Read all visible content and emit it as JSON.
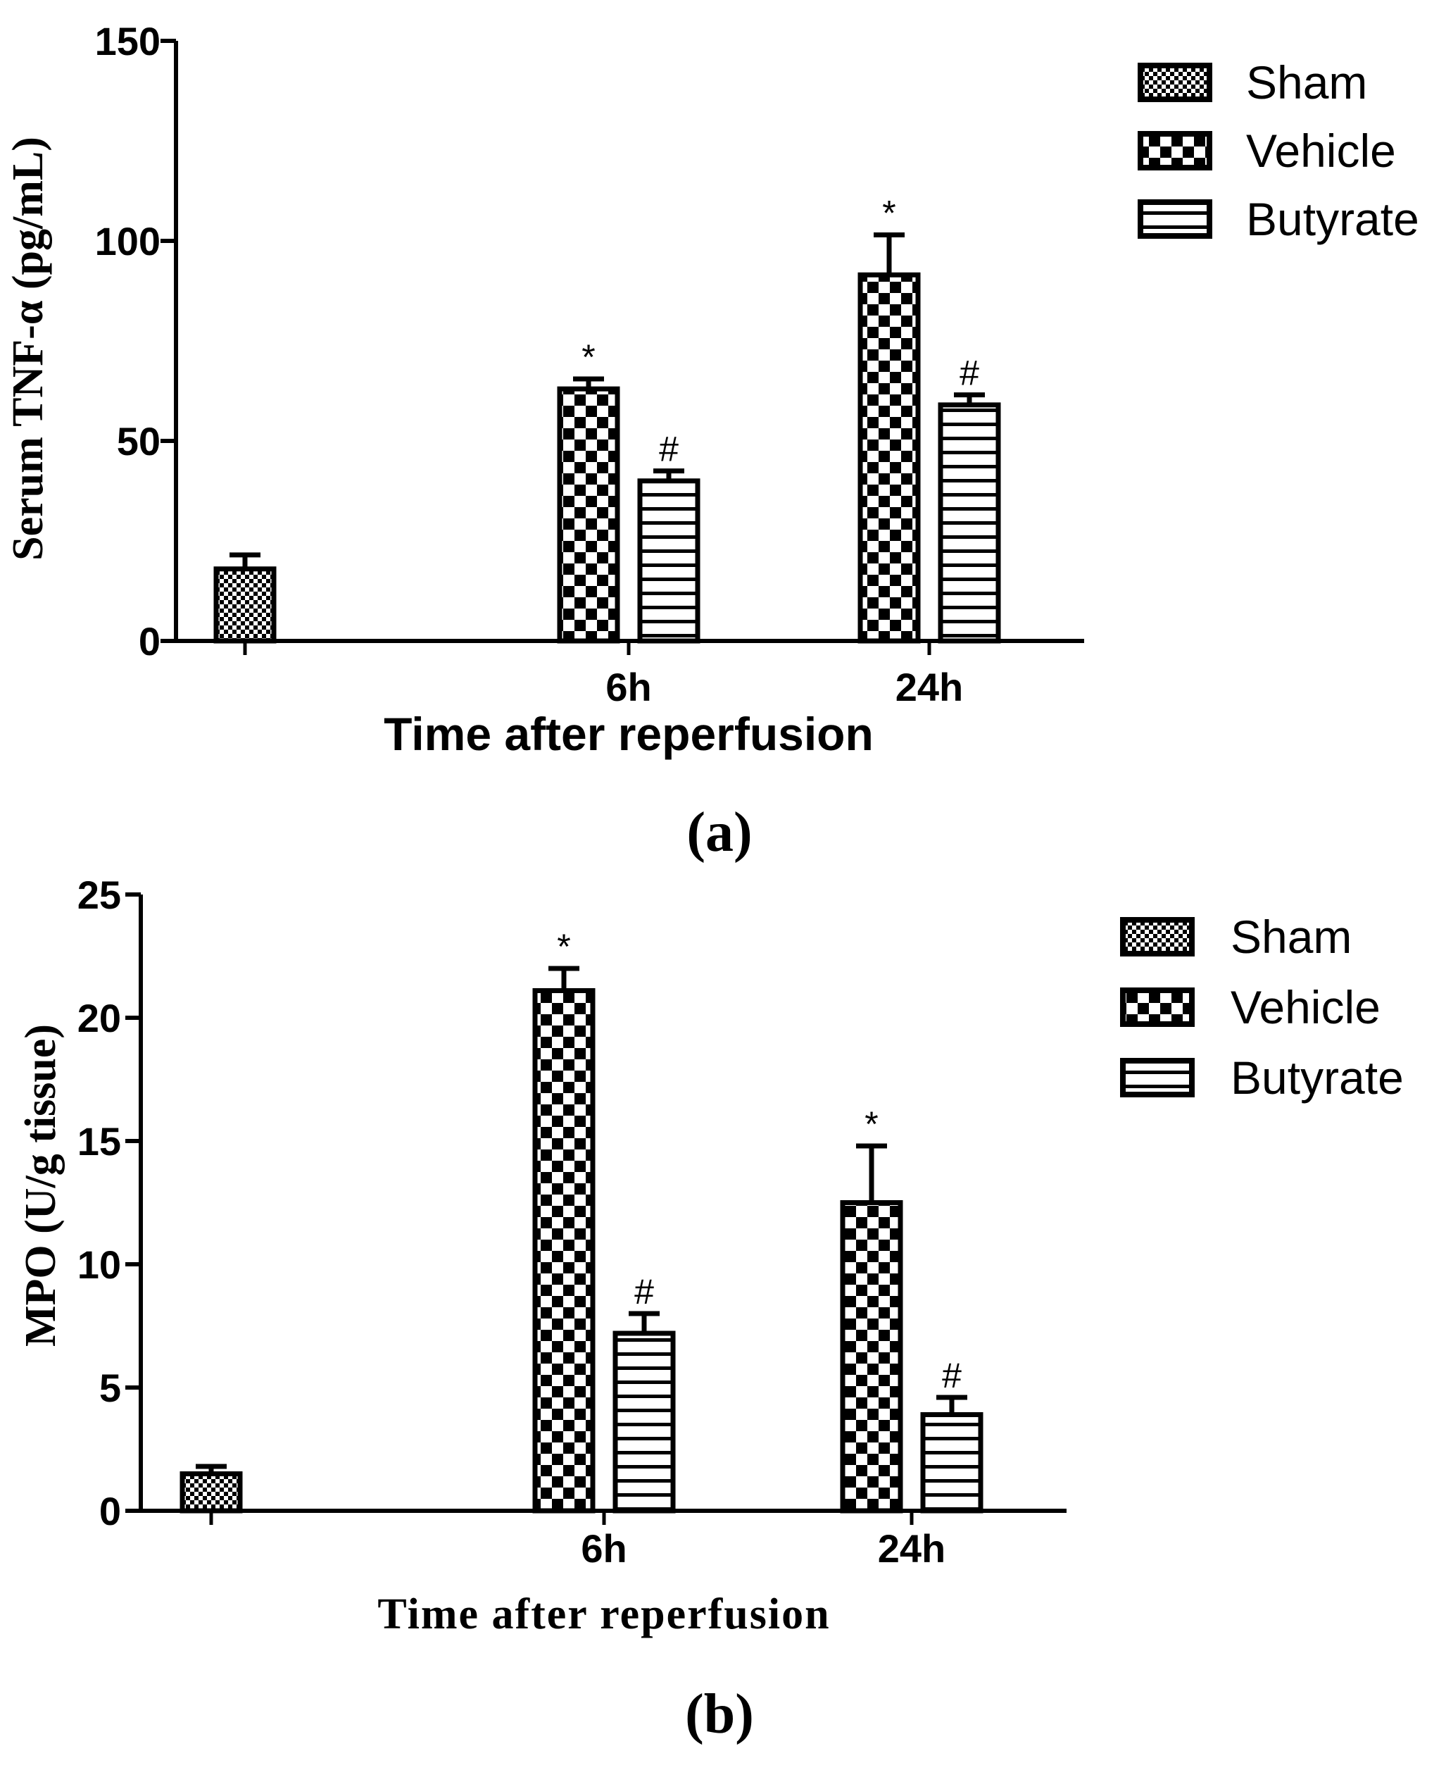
{
  "chart_data": [
    {
      "type": "bar",
      "panel_label": "(a)",
      "title": "",
      "xlabel": "Time after reperfusion",
      "ylabel": "Serum TNF-α (pg/mL)",
      "ylim": [
        0,
        150
      ],
      "yticks": [
        0,
        50,
        100,
        150
      ],
      "categories": [
        "",
        "6h",
        "24h"
      ],
      "series": [
        {
          "name": "Sham",
          "pattern": "fine-check",
          "values": [
            18,
            null,
            null
          ],
          "errors": [
            3.5,
            null,
            null
          ],
          "sig": [
            "",
            "",
            ""
          ]
        },
        {
          "name": "Vehicle",
          "pattern": "coarse-check",
          "values": [
            null,
            63,
            91.5
          ],
          "errors": [
            null,
            2.5,
            10
          ],
          "sig": [
            "",
            "*",
            "*"
          ]
        },
        {
          "name": "Butyrate",
          "pattern": "horizontal-lines",
          "values": [
            null,
            40,
            59
          ],
          "errors": [
            null,
            2.5,
            2.5
          ],
          "sig": [
            "",
            "#",
            "#"
          ]
        }
      ],
      "legend": [
        "Sham",
        "Vehicle",
        "Butyrate"
      ],
      "legend_position": "top-right"
    },
    {
      "type": "bar",
      "panel_label": "(b)",
      "title": "",
      "xlabel": "Time after reperfusion",
      "ylabel": "MPO (U/g tissue)",
      "ylim": [
        0,
        25
      ],
      "yticks": [
        0,
        5,
        10,
        15,
        20,
        25
      ],
      "categories": [
        "",
        "6h",
        "24h"
      ],
      "series": [
        {
          "name": "Sham",
          "pattern": "fine-check",
          "values": [
            1.5,
            null,
            null
          ],
          "errors": [
            0.3,
            null,
            null
          ],
          "sig": [
            "",
            "",
            ""
          ]
        },
        {
          "name": "Vehicle",
          "pattern": "coarse-check",
          "values": [
            null,
            21.1,
            12.5
          ],
          "errors": [
            null,
            0.9,
            2.3
          ],
          "sig": [
            "",
            "*",
            "*"
          ]
        },
        {
          "name": "Butyrate",
          "pattern": "horizontal-lines",
          "values": [
            null,
            7.2,
            3.9
          ],
          "errors": [
            null,
            0.8,
            0.7
          ],
          "sig": [
            "",
            "#",
            "#"
          ]
        }
      ],
      "legend": [
        "Sham",
        "Vehicle",
        "Butyrate"
      ],
      "legend_position": "top-right"
    }
  ]
}
